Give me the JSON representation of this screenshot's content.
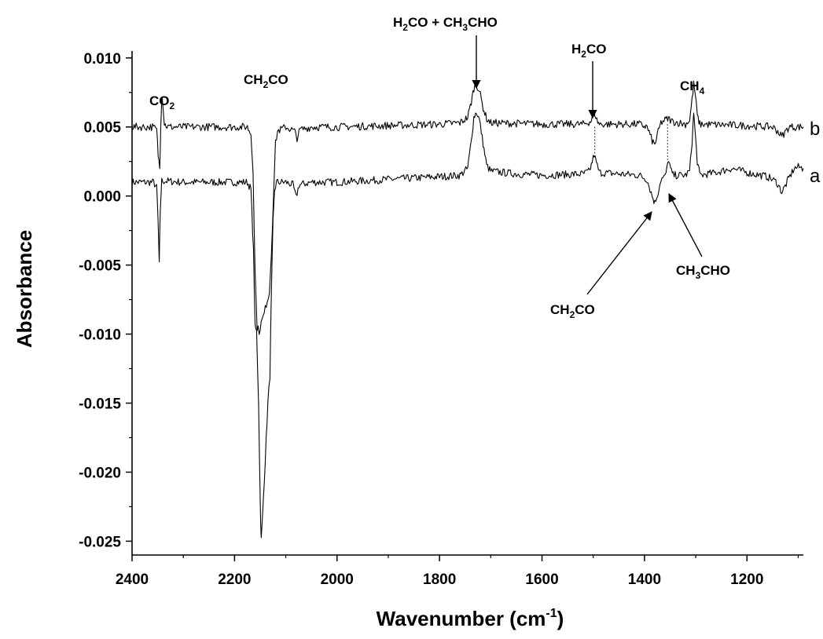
{
  "chart_data": {
    "type": "line",
    "xlabel": "Wavenumber (cm",
    "xlabel_sup": "-1",
    "xlabel_close": ")",
    "ylabel": "Absorbance",
    "xlim": [
      2400,
      1090
    ],
    "ylim": [
      -0.026,
      0.0105
    ],
    "x_ticks": [
      2400,
      2200,
      2000,
      1800,
      1600,
      1400,
      1200
    ],
    "x_tick_labels": [
      "2400",
      "2200",
      "2000",
      "1800",
      "1600",
      "1400",
      "1200"
    ],
    "y_ticks": [
      0.01,
      0.005,
      0.0,
      -0.005,
      -0.01,
      -0.015,
      -0.02,
      -0.025
    ],
    "y_tick_labels": [
      "0.010",
      "0.005",
      "0.000",
      "-0.005",
      "-0.010",
      "-0.015",
      "-0.020",
      "-0.025"
    ],
    "grid": false,
    "series": [
      {
        "name": "a",
        "baseline": 0.001,
        "points": [
          [
            2400,
            0.001
          ],
          [
            2358,
            0.001
          ],
          [
            2352,
            0.0006
          ],
          [
            2349,
            -0.002
          ],
          [
            2347,
            -0.005
          ],
          [
            2345,
            -0.001
          ],
          [
            2342,
            0.0011
          ],
          [
            2300,
            0.001
          ],
          [
            2200,
            0.001
          ],
          [
            2175,
            0.001
          ],
          [
            2168,
            0.0005
          ],
          [
            2163,
            -0.004
          ],
          [
            2160,
            -0.0095
          ],
          [
            2157,
            -0.0098
          ],
          [
            2153,
            -0.015
          ],
          [
            2150,
            -0.022
          ],
          [
            2148,
            -0.0249
          ],
          [
            2145,
            -0.023
          ],
          [
            2140,
            -0.019
          ],
          [
            2135,
            -0.015
          ],
          [
            2131,
            -0.013
          ],
          [
            2128,
            -0.007
          ],
          [
            2125,
            -0.002
          ],
          [
            2122,
            0.0004
          ],
          [
            2118,
            0.001
          ],
          [
            2100,
            0.001
          ],
          [
            2086,
            0.0008
          ],
          [
            2080,
            -0.0001
          ],
          [
            2074,
            0.0008
          ],
          [
            2050,
            0.001
          ],
          [
            2000,
            0.001
          ],
          [
            1900,
            0.0012
          ],
          [
            1800,
            0.0014
          ],
          [
            1760,
            0.0015
          ],
          [
            1745,
            0.002
          ],
          [
            1738,
            0.004
          ],
          [
            1733,
            0.0057
          ],
          [
            1728,
            0.0061
          ],
          [
            1722,
            0.0055
          ],
          [
            1715,
            0.0038
          ],
          [
            1708,
            0.0022
          ],
          [
            1700,
            0.0018
          ],
          [
            1650,
            0.0016
          ],
          [
            1600,
            0.0015
          ],
          [
            1520,
            0.0016
          ],
          [
            1507,
            0.0018
          ],
          [
            1502,
            0.0025
          ],
          [
            1498,
            0.003
          ],
          [
            1494,
            0.0024
          ],
          [
            1488,
            0.0017
          ],
          [
            1450,
            0.0016
          ],
          [
            1410,
            0.0015
          ],
          [
            1395,
            0.0012
          ],
          [
            1385,
            0.0
          ],
          [
            1380,
            -0.0005
          ],
          [
            1374,
            0.0002
          ],
          [
            1368,
            0.0012
          ],
          [
            1360,
            0.0014
          ],
          [
            1356,
            0.002
          ],
          [
            1353,
            0.0027
          ],
          [
            1349,
            0.0019
          ],
          [
            1344,
            0.0015
          ],
          [
            1320,
            0.0015
          ],
          [
            1312,
            0.0018
          ],
          [
            1307,
            0.004
          ],
          [
            1304,
            0.006
          ],
          [
            1301,
            0.0045
          ],
          [
            1297,
            0.0025
          ],
          [
            1292,
            0.0015
          ],
          [
            1260,
            0.0017
          ],
          [
            1230,
            0.002
          ],
          [
            1200,
            0.0017
          ],
          [
            1160,
            0.0014
          ],
          [
            1142,
            0.001
          ],
          [
            1132,
            0.0003
          ],
          [
            1127,
            0.0006
          ],
          [
            1118,
            0.0013
          ],
          [
            1108,
            0.002
          ],
          [
            1100,
            0.0021
          ],
          [
            1090,
            0.002
          ]
        ]
      },
      {
        "name": "b",
        "baseline": 0.005,
        "points": [
          [
            2400,
            0.005
          ],
          [
            2360,
            0.005
          ],
          [
            2352,
            0.0048
          ],
          [
            2349,
            0.003
          ],
          [
            2346,
            0.002
          ],
          [
            2344,
            0.0052
          ],
          [
            2342,
            0.0073
          ],
          [
            2340,
            0.0068
          ],
          [
            2337,
            0.0052
          ],
          [
            2330,
            0.005
          ],
          [
            2200,
            0.005
          ],
          [
            2175,
            0.005
          ],
          [
            2168,
            0.0045
          ],
          [
            2164,
            0.002
          ],
          [
            2160,
            -0.0055
          ],
          [
            2156,
            -0.0095
          ],
          [
            2152,
            -0.0098
          ],
          [
            2148,
            -0.0092
          ],
          [
            2142,
            -0.0085
          ],
          [
            2136,
            -0.0075
          ],
          [
            2132,
            -0.007
          ],
          [
            2128,
            -0.004
          ],
          [
            2124,
            0.0
          ],
          [
            2120,
            0.0038
          ],
          [
            2116,
            0.0047
          ],
          [
            2100,
            0.005
          ],
          [
            2083,
            0.0047
          ],
          [
            2078,
            0.0042
          ],
          [
            2072,
            0.0048
          ],
          [
            2050,
            0.005
          ],
          [
            2000,
            0.005
          ],
          [
            1900,
            0.0051
          ],
          [
            1800,
            0.0052
          ],
          [
            1760,
            0.0053
          ],
          [
            1745,
            0.0057
          ],
          [
            1738,
            0.0068
          ],
          [
            1733,
            0.0078
          ],
          [
            1728,
            0.0081
          ],
          [
            1722,
            0.0076
          ],
          [
            1715,
            0.0064
          ],
          [
            1708,
            0.0056
          ],
          [
            1700,
            0.0053
          ],
          [
            1600,
            0.0052
          ],
          [
            1520,
            0.0052
          ],
          [
            1505,
            0.0054
          ],
          [
            1500,
            0.0058
          ],
          [
            1497,
            0.006
          ],
          [
            1493,
            0.0055
          ],
          [
            1488,
            0.0052
          ],
          [
            1410,
            0.0052
          ],
          [
            1395,
            0.005
          ],
          [
            1385,
            0.004
          ],
          [
            1380,
            0.0037
          ],
          [
            1375,
            0.0044
          ],
          [
            1368,
            0.0053
          ],
          [
            1360,
            0.0055
          ],
          [
            1353,
            0.0056
          ],
          [
            1346,
            0.0054
          ],
          [
            1320,
            0.0052
          ],
          [
            1312,
            0.0055
          ],
          [
            1307,
            0.007
          ],
          [
            1304,
            0.0081
          ],
          [
            1301,
            0.0074
          ],
          [
            1297,
            0.0058
          ],
          [
            1292,
            0.0052
          ],
          [
            1200,
            0.0051
          ],
          [
            1150,
            0.005
          ],
          [
            1140,
            0.0047
          ],
          [
            1132,
            0.0043
          ],
          [
            1126,
            0.0046
          ],
          [
            1118,
            0.005
          ],
          [
            1100,
            0.005
          ],
          [
            1090,
            0.005
          ]
        ]
      }
    ],
    "series_labels": [
      "a",
      "b"
    ],
    "annotations": [
      {
        "parts": [
          [
            "CO",
            ""
          ],
          [
            "2",
            "sub"
          ]
        ]
      },
      {
        "parts": [
          [
            "CH",
            ""
          ],
          [
            "2",
            "sub"
          ],
          [
            "CO",
            ""
          ]
        ]
      },
      {
        "parts": [
          [
            "H",
            ""
          ],
          [
            "2",
            "sub"
          ],
          [
            "CO + CH",
            ""
          ],
          [
            "3",
            "sub"
          ],
          [
            "CHO",
            ""
          ]
        ]
      },
      {
        "parts": [
          [
            "H",
            ""
          ],
          [
            "2",
            "sub"
          ],
          [
            "CO",
            ""
          ]
        ]
      },
      {
        "parts": [
          [
            "CH",
            ""
          ],
          [
            "4",
            "sub"
          ]
        ]
      },
      {
        "parts": [
          [
            "CH",
            ""
          ],
          [
            "3",
            "sub"
          ],
          [
            "CHO",
            ""
          ]
        ]
      },
      {
        "parts": [
          [
            "CH",
            ""
          ],
          [
            "2",
            "sub"
          ],
          [
            "CO",
            ""
          ]
        ]
      }
    ],
    "dotted_connectors_at": [
      1497,
      1355
    ]
  }
}
